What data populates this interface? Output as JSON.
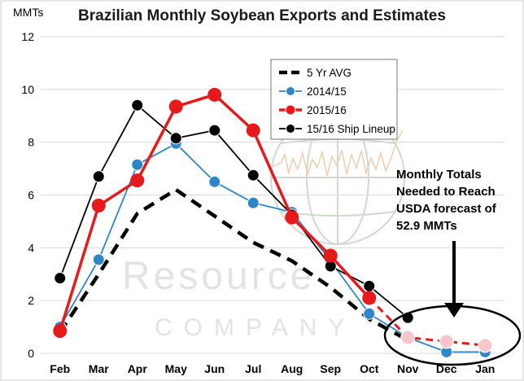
{
  "chart_data": {
    "type": "line",
    "title": "Brazilian Monthly Soybean Exports and Estimates",
    "ylabel": "MMTs",
    "xlabel": "",
    "ylim": [
      0,
      12
    ],
    "yticks": [
      "0",
      "2",
      "4",
      "6",
      "8",
      "10",
      "12"
    ],
    "categories": [
      "Feb",
      "Mar",
      "Apr",
      "May",
      "Jun",
      "Jul",
      "Aug",
      "Sep",
      "Oct",
      "Nov",
      "Dec",
      "Jan"
    ],
    "grid": "horizontal",
    "legend_position": "top-center",
    "series": [
      {
        "name": "5 Yr AVG",
        "color": "#000000",
        "style": "dashed-bold",
        "marker": "none",
        "values": [
          0.8,
          3.0,
          5.3,
          6.2,
          5.2,
          4.2,
          3.5,
          2.5,
          1.3,
          0.5,
          null,
          null
        ]
      },
      {
        "name": "2014/15",
        "color": "#2E86C9",
        "style": "solid",
        "marker": "circle",
        "values": [
          1.0,
          3.55,
          7.15,
          7.95,
          6.5,
          5.7,
          5.35,
          3.5,
          1.5,
          0.6,
          0.05,
          0.05
        ]
      },
      {
        "name": "2015/16",
        "color": "#E8191A",
        "style": "solid-bold",
        "marker": "circle",
        "values": [
          0.85,
          5.6,
          6.55,
          9.35,
          9.8,
          8.45,
          5.15,
          3.7,
          2.1,
          null,
          null,
          null
        ]
      },
      {
        "name": "15/16 Ship Lineup",
        "color": "#000000",
        "style": "solid",
        "marker": "circle",
        "values": [
          2.85,
          6.7,
          9.4,
          8.15,
          8.45,
          6.75,
          5.25,
          3.3,
          2.55,
          1.35,
          null,
          null
        ]
      }
    ],
    "estimate_series": {
      "color": "#E8191A",
      "style": "dashed",
      "marker_fill": "#F7C6CB",
      "points": [
        {
          "x": "Oct",
          "y": 2.1
        },
        {
          "x": "Nov",
          "y": 0.6
        },
        {
          "x": "Dec",
          "y": 0.45
        },
        {
          "x": "Jan",
          "y": 0.3
        }
      ]
    },
    "annotation": {
      "lines": [
        "Monthly Totals",
        "Needed to Reach",
        "USDA forecast of",
        "52.9 MMTs"
      ],
      "target_months": [
        "Nov",
        "Dec",
        "Jan"
      ],
      "box_color": "#000000"
    },
    "watermark_text": [
      "Resource",
      "COMPANY"
    ]
  }
}
